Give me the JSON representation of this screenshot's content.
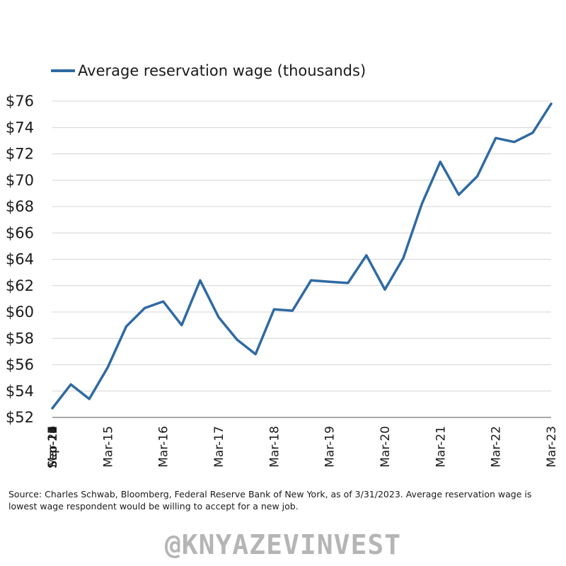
{
  "chart_data": {
    "type": "line",
    "title": "",
    "xlabel": "",
    "ylabel": "",
    "ylim": [
      52,
      76
    ],
    "y_ticks": [
      "$52",
      "$54",
      "$56",
      "$58",
      "$60",
      "$62",
      "$64",
      "$66",
      "$68",
      "$70",
      "$72",
      "$74",
      "$76"
    ],
    "y_tick_values": [
      52,
      54,
      56,
      58,
      60,
      62,
      64,
      66,
      68,
      70,
      72,
      74,
      76
    ],
    "categories": [
      "Mar-14",
      "Jul-14",
      "Nov-14",
      "Mar-15",
      "Jul-15",
      "Nov-15",
      "Mar-16",
      "Jul-16",
      "Nov-16",
      "Mar-17",
      "Jul-17",
      "Nov-17",
      "Mar-18",
      "Jul-18",
      "Nov-18",
      "Mar-19",
      "Jul-19",
      "Nov-19",
      "Mar-20",
      "Jul-20",
      "Nov-20",
      "Mar-21",
      "Jul-21",
      "Nov-21",
      "Mar-22",
      "Jul-22",
      "Nov-22",
      "Mar-23"
    ],
    "x_ticks": [
      "Mar-14",
      "Sep-14",
      "Mar-15",
      "Sep-15",
      "Mar-16",
      "Sep-16",
      "Mar-17",
      "Sep-17",
      "Mar-18",
      "Sep-18",
      "Mar-19",
      "Sep-19",
      "Mar-20",
      "Sep-20",
      "Mar-21",
      "Sep-21",
      "Mar-22",
      "Sep-22",
      "Mar-23"
    ],
    "series": [
      {
        "name": "Average reservation wage (thousands)",
        "color": "#2f6aa3",
        "values": [
          52.7,
          54.5,
          53.4,
          55.8,
          58.9,
          60.3,
          60.8,
          59.0,
          62.4,
          59.6,
          57.9,
          56.8,
          60.2,
          60.1,
          62.4,
          62.3,
          62.2,
          64.3,
          61.7,
          64.1,
          68.2,
          71.4,
          68.9,
          70.3,
          73.2,
          72.9,
          73.6,
          75.8
        ]
      }
    ],
    "grid": true,
    "legend": "top-left"
  },
  "legend": {
    "label": "Average reservation wage (thousands)"
  },
  "footer": {
    "source": "Source: Charles Schwab, Bloomberg, Federal Reserve Bank of New York, as of 3/31/2023. Average reservation wage is lowest wage respondent would be willing to accept for a new job.",
    "watermark": "@KNYAZEVINVEST"
  }
}
